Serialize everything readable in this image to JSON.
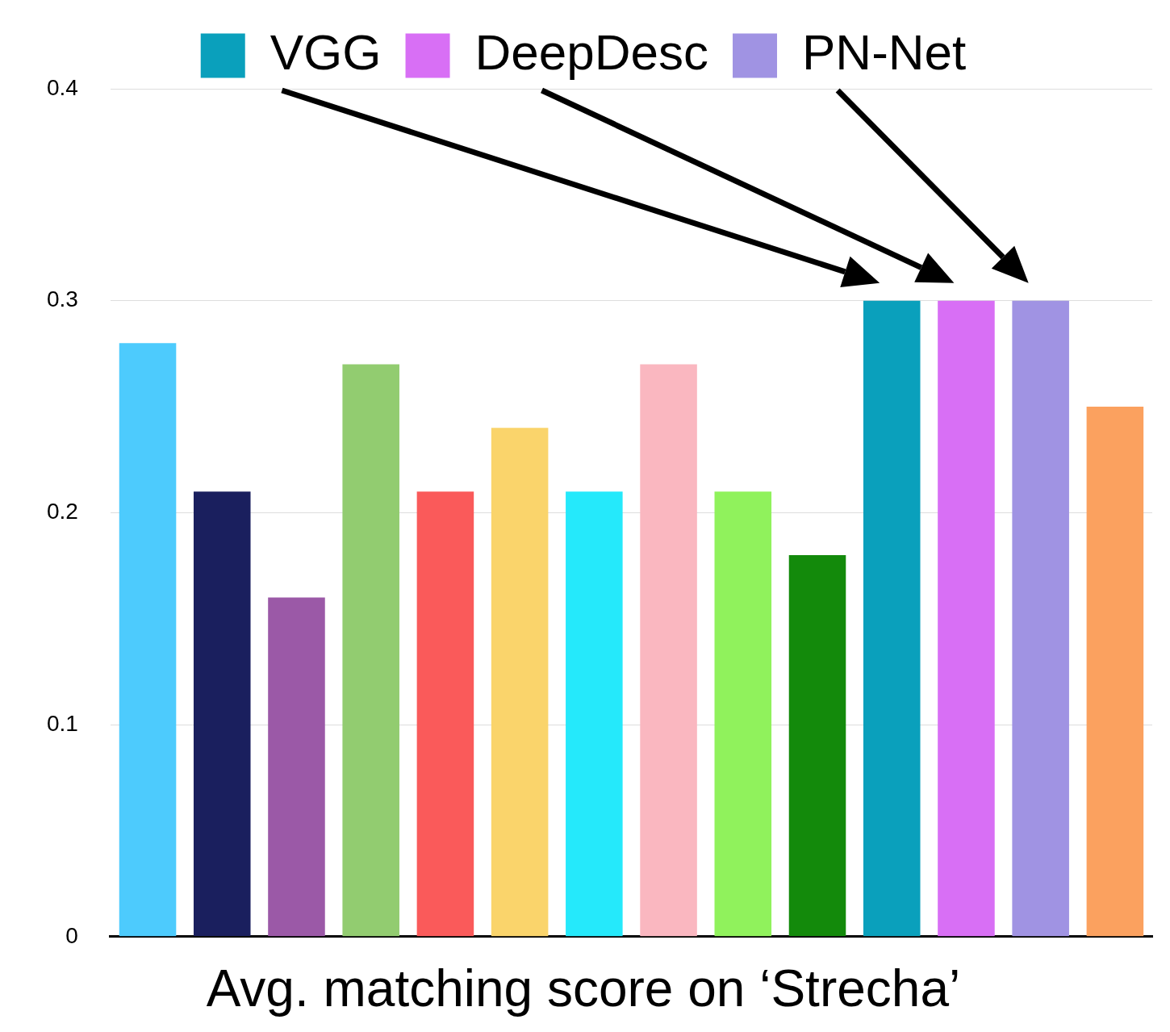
{
  "chart_data": {
    "type": "bar",
    "title": "Avg. matching score on ‘Strecha’",
    "categories": [
      null,
      null,
      null,
      null,
      null,
      null,
      null,
      null,
      null,
      null,
      null,
      null,
      null,
      null
    ],
    "series": [
      {
        "colors": [
          "#4dcbfd",
          "#1a1f5e",
          "#9b59a7",
          "#92cc70",
          "#fa5a5a",
          "#fad46b",
          "#25e9fb",
          "#fab7c0",
          "#90f25c",
          "#138a0b",
          null,
          null,
          null,
          "#fba15f"
        ],
        "values": [
          0.28,
          0.21,
          0.16,
          0.27,
          0.21,
          0.24,
          0.21,
          0.27,
          0.21,
          0.18,
          null,
          null,
          null,
          0.25
        ]
      },
      {
        "name": "VGG",
        "color": "#0aa0bc",
        "values": [
          null,
          null,
          null,
          null,
          null,
          null,
          null,
          null,
          null,
          null,
          0.3,
          null,
          null,
          null
        ]
      },
      {
        "name": "DeepDesc",
        "color": "#d86ff5",
        "values": [
          null,
          null,
          null,
          null,
          null,
          null,
          null,
          null,
          null,
          null,
          null,
          0.3,
          null,
          null
        ]
      },
      {
        "name": "PN-Net",
        "color": "#a093e3",
        "values": [
          null,
          null,
          null,
          null,
          null,
          null,
          null,
          null,
          null,
          null,
          null,
          null,
          0.3,
          null
        ]
      }
    ],
    "ylim": [
      0,
      0.4
    ],
    "yticks": [
      0,
      0.1,
      0.2,
      0.3,
      0.4
    ],
    "grid": "y",
    "legend": "top"
  }
}
